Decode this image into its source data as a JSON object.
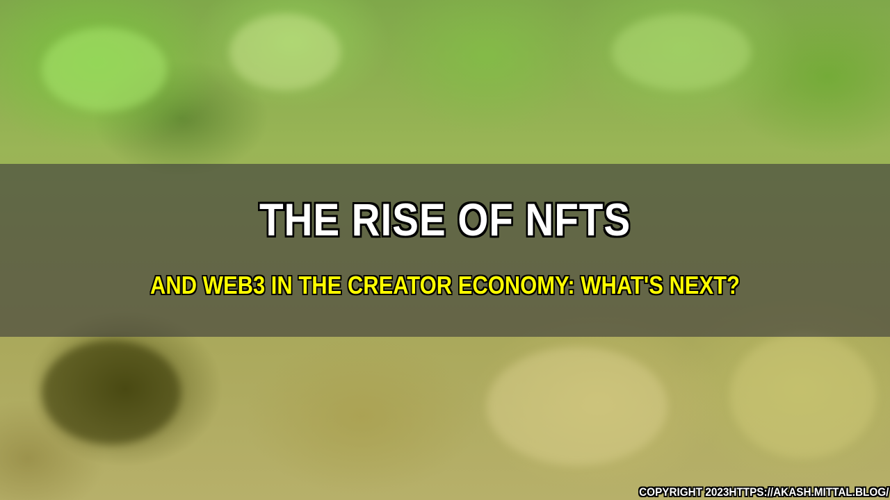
{
  "title": "The Rise of NFTs",
  "subtitle": "and Web3 in the Creator Economy: What's Next?",
  "copyright": "Copyright 2023https://akash.mittal.blog/",
  "colors": {
    "title": "#ffffff",
    "subtitle": "#ffff00",
    "band": "#3c3c3c",
    "background": "#9ab556"
  }
}
